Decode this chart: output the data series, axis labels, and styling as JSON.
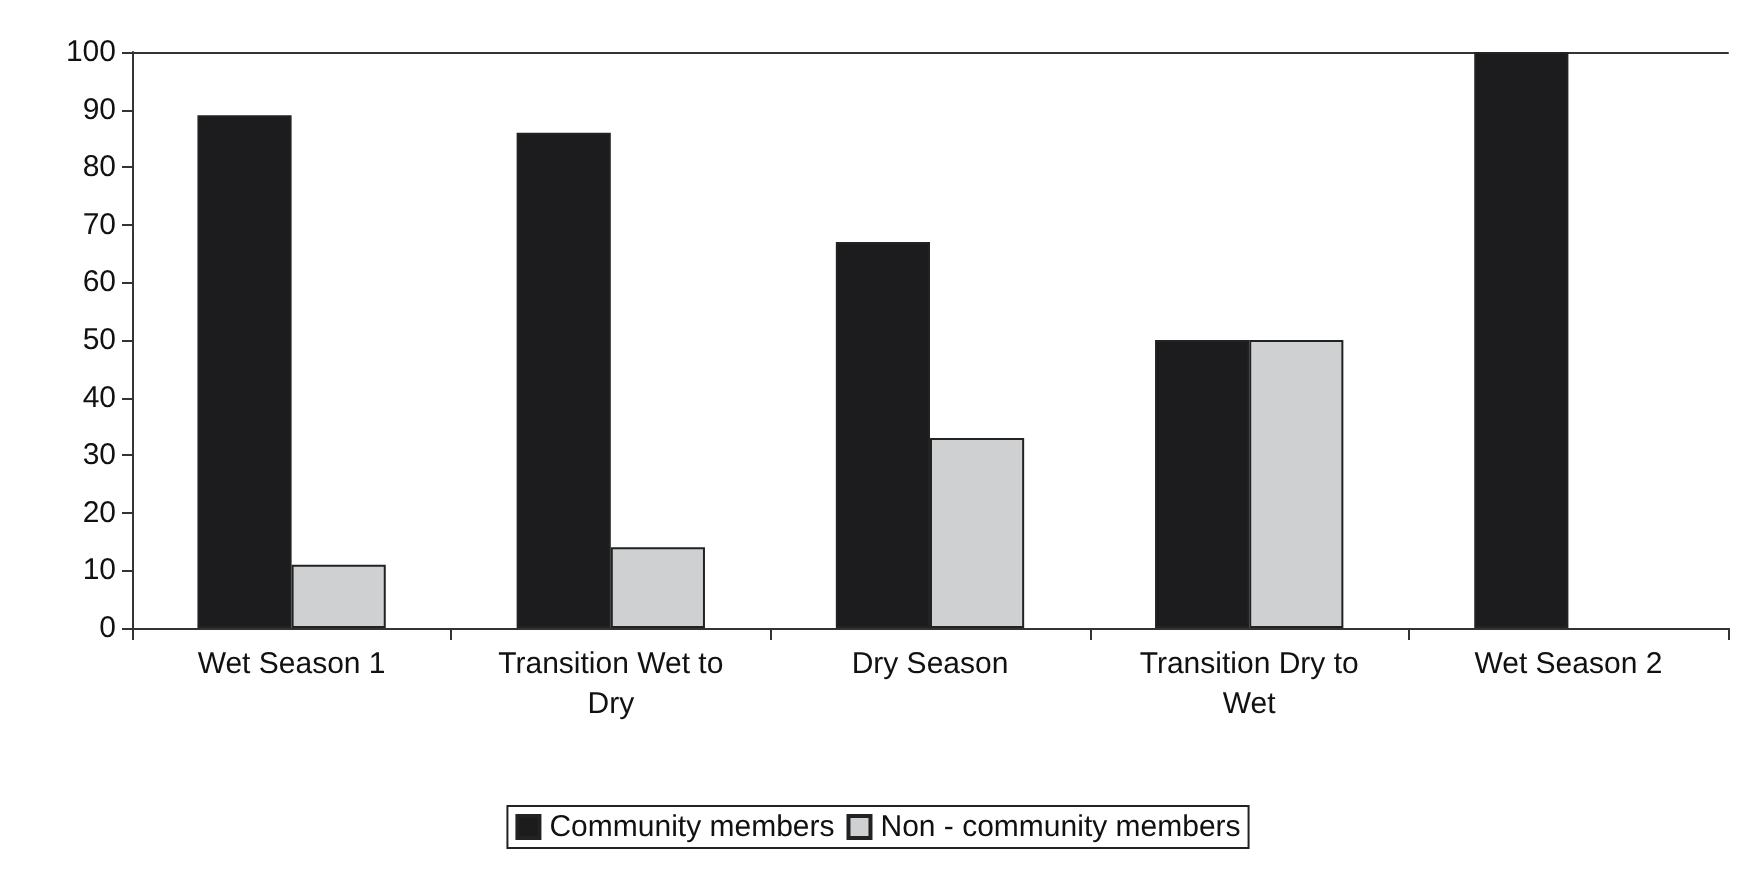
{
  "chart_data": {
    "type": "bar",
    "categories": [
      "Wet Season 1",
      "Transition Wet to Dry",
      "Dry Season",
      "Transition Dry to Wet",
      "Wet Season 2"
    ],
    "series": [
      {
        "name": "Community members",
        "color": "#1c1b1d",
        "values": [
          89,
          86,
          67,
          50,
          100
        ]
      },
      {
        "name": "Non - community members",
        "color": "#cfd0d2",
        "values": [
          11,
          14,
          33,
          50,
          null
        ]
      }
    ],
    "ylim": [
      0,
      100
    ],
    "yticks": [
      0,
      10,
      20,
      30,
      40,
      50,
      60,
      70,
      80,
      90,
      100
    ],
    "grid": false,
    "legend": "bottom"
  }
}
